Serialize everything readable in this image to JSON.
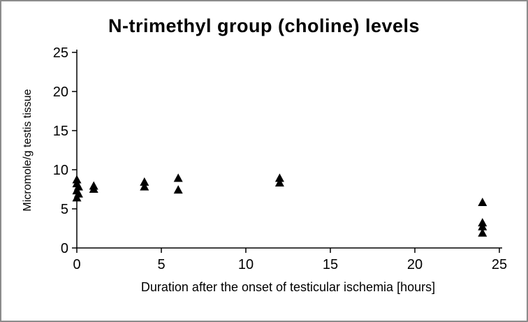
{
  "title": "N-trimethyl group (choline) levels",
  "chart_data": {
    "type": "scatter",
    "title": "N-trimethyl group (choline) levels",
    "xlabel": "Duration after the onset of testicular  ischemia [hours]",
    "ylabel": "Micromole/g testis tissue",
    "xlim": [
      0,
      25
    ],
    "ylim": [
      0,
      25
    ],
    "xticks": [
      0,
      5,
      10,
      15,
      20,
      25
    ],
    "yticks": [
      0,
      5,
      10,
      15,
      20,
      25
    ],
    "grid": false,
    "legend": "none",
    "marker": "filled-triangle",
    "marker_color": "#000000",
    "points": [
      [
        0,
        8.7
      ],
      [
        0,
        8.2
      ],
      [
        0.1,
        7.8
      ],
      [
        0,
        7.3
      ],
      [
        0.1,
        6.9
      ],
      [
        0,
        6.4
      ],
      [
        1,
        7.9
      ],
      [
        1,
        7.5
      ],
      [
        4,
        8.4
      ],
      [
        4,
        7.8
      ],
      [
        6,
        8.9
      ],
      [
        6,
        7.4
      ],
      [
        12,
        8.9
      ],
      [
        12,
        8.3
      ],
      [
        24,
        5.8
      ],
      [
        24,
        3.2
      ],
      [
        24,
        2.7
      ],
      [
        24,
        1.9
      ]
    ]
  }
}
